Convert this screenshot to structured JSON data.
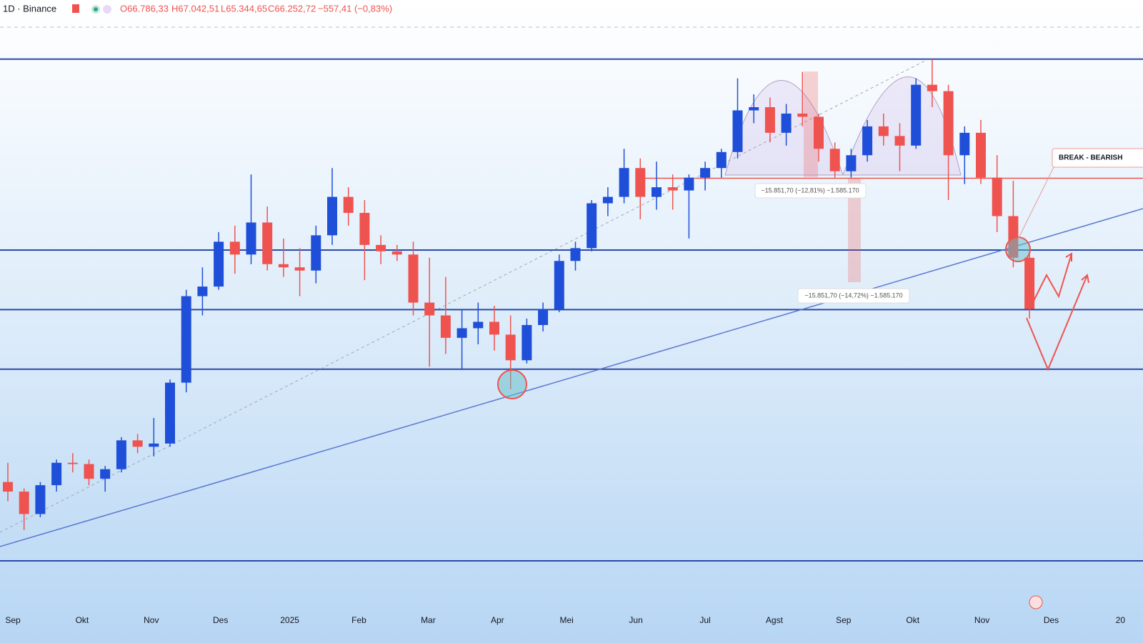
{
  "header": {
    "symbol": "1D · Binance",
    "open": "O66.786,33",
    "high": "H67.042,51",
    "low": "L65.344,65",
    "close": "C66.252,72",
    "change": "−557,41 (−0,83%)"
  },
  "annotations": {
    "break": "BREAK - BEARISH",
    "measure_1": "−15.851,70 (−12,81%) −1.585.170",
    "measure_2": "−15.851,70 (−14,72%) −1.585.170"
  },
  "chart_data": {
    "type": "candlestick",
    "ylim": [
      40000,
      134000
    ],
    "x_labels": [
      "Sep",
      "Okt",
      "Nov",
      "Des",
      "2025",
      "Feb",
      "Mar",
      "Apr",
      "Mei",
      "Jun",
      "Jul",
      "Agst",
      "Sep",
      "Okt",
      "Nov",
      "Des",
      "20"
    ],
    "up_color": "#1f4fd8",
    "down_color": "#ef5350",
    "levels": [
      126000,
      96200,
      86900,
      77600,
      47700
    ],
    "level_color": "#2a4aa8",
    "neckline": 107400,
    "neckline_color": "#ef5350",
    "candles": [
      {
        "o": 60000,
        "h": 63000,
        "l": 57000,
        "c": 58500
      },
      {
        "o": 58500,
        "h": 59000,
        "l": 52500,
        "c": 55000
      },
      {
        "o": 55000,
        "h": 60000,
        "l": 54500,
        "c": 59500
      },
      {
        "o": 59500,
        "h": 63500,
        "l": 58500,
        "c": 63000
      },
      {
        "o": 63000,
        "h": 64500,
        "l": 61500,
        "c": 62800
      },
      {
        "o": 62800,
        "h": 63500,
        "l": 59500,
        "c": 60500
      },
      {
        "o": 60500,
        "h": 62500,
        "l": 58500,
        "c": 62000
      },
      {
        "o": 62000,
        "h": 67000,
        "l": 61500,
        "c": 66500
      },
      {
        "o": 66500,
        "h": 67500,
        "l": 64500,
        "c": 65500
      },
      {
        "o": 65500,
        "h": 70000,
        "l": 64000,
        "c": 66000
      },
      {
        "o": 66000,
        "h": 76000,
        "l": 65500,
        "c": 75500
      },
      {
        "o": 75500,
        "h": 90000,
        "l": 74000,
        "c": 89000
      },
      {
        "o": 89000,
        "h": 93500,
        "l": 86000,
        "c": 90500
      },
      {
        "o": 90500,
        "h": 99000,
        "l": 90000,
        "c": 97500
      },
      {
        "o": 97500,
        "h": 100000,
        "l": 92500,
        "c": 95500
      },
      {
        "o": 95500,
        "h": 108000,
        "l": 94000,
        "c": 100500
      },
      {
        "o": 100500,
        "h": 103000,
        "l": 93000,
        "c": 94000
      },
      {
        "o": 94000,
        "h": 98000,
        "l": 92000,
        "c": 93500
      },
      {
        "o": 93500,
        "h": 96500,
        "l": 89000,
        "c": 93000
      },
      {
        "o": 93000,
        "h": 100000,
        "l": 91000,
        "c": 98500
      },
      {
        "o": 98500,
        "h": 109000,
        "l": 97000,
        "c": 104500
      },
      {
        "o": 104500,
        "h": 106000,
        "l": 100000,
        "c": 102000
      },
      {
        "o": 102000,
        "h": 104000,
        "l": 91500,
        "c": 97000
      },
      {
        "o": 97000,
        "h": 98500,
        "l": 94000,
        "c": 96000
      },
      {
        "o": 96000,
        "h": 97000,
        "l": 94500,
        "c": 95500
      },
      {
        "o": 95500,
        "h": 97500,
        "l": 86000,
        "c": 88000
      },
      {
        "o": 88000,
        "h": 95000,
        "l": 78000,
        "c": 86000
      },
      {
        "o": 86000,
        "h": 92000,
        "l": 80000,
        "c": 82500
      },
      {
        "o": 82500,
        "h": 87000,
        "l": 77500,
        "c": 84000
      },
      {
        "o": 84000,
        "h": 88000,
        "l": 81500,
        "c": 85000
      },
      {
        "o": 85000,
        "h": 87500,
        "l": 80500,
        "c": 83000
      },
      {
        "o": 83000,
        "h": 86000,
        "l": 74500,
        "c": 79000
      },
      {
        "o": 79000,
        "h": 85500,
        "l": 78500,
        "c": 84500
      },
      {
        "o": 84500,
        "h": 88000,
        "l": 83500,
        "c": 87000
      },
      {
        "o": 87000,
        "h": 95500,
        "l": 86500,
        "c": 94500
      },
      {
        "o": 94500,
        "h": 97500,
        "l": 93000,
        "c": 96500
      },
      {
        "o": 96500,
        "h": 104000,
        "l": 96000,
        "c": 103500
      },
      {
        "o": 103500,
        "h": 106000,
        "l": 101500,
        "c": 104500
      },
      {
        "o": 104500,
        "h": 112000,
        "l": 103500,
        "c": 109000
      },
      {
        "o": 109000,
        "h": 110500,
        "l": 101000,
        "c": 104500
      },
      {
        "o": 104500,
        "h": 110000,
        "l": 102500,
        "c": 106000
      },
      {
        "o": 106000,
        "h": 108000,
        "l": 102500,
        "c": 105500
      },
      {
        "o": 105500,
        "h": 108000,
        "l": 98000,
        "c": 107500
      },
      {
        "o": 107500,
        "h": 110000,
        "l": 105500,
        "c": 109000
      },
      {
        "o": 109000,
        "h": 112000,
        "l": 107500,
        "c": 111500
      },
      {
        "o": 111500,
        "h": 123000,
        "l": 110500,
        "c": 118000
      },
      {
        "o": 118000,
        "h": 120500,
        "l": 116000,
        "c": 118500
      },
      {
        "o": 118500,
        "h": 120000,
        "l": 113000,
        "c": 114500
      },
      {
        "o": 114500,
        "h": 119000,
        "l": 112500,
        "c": 117500
      },
      {
        "o": 117500,
        "h": 124000,
        "l": 115500,
        "c": 117000
      },
      {
        "o": 117000,
        "h": 117500,
        "l": 110000,
        "c": 112000
      },
      {
        "o": 112000,
        "h": 113000,
        "l": 107500,
        "c": 108500
      },
      {
        "o": 108500,
        "h": 112000,
        "l": 107500,
        "c": 111000
      },
      {
        "o": 111000,
        "h": 116500,
        "l": 110000,
        "c": 115500
      },
      {
        "o": 115500,
        "h": 117500,
        "l": 112500,
        "c": 114000
      },
      {
        "o": 114000,
        "h": 116000,
        "l": 108500,
        "c": 112500
      },
      {
        "o": 112500,
        "h": 123000,
        "l": 112000,
        "c": 122000
      },
      {
        "o": 122000,
        "h": 126000,
        "l": 118500,
        "c": 121000
      },
      {
        "o": 121000,
        "h": 122000,
        "l": 104000,
        "c": 111000
      },
      {
        "o": 111000,
        "h": 115500,
        "l": 106500,
        "c": 114500
      },
      {
        "o": 114500,
        "h": 116500,
        "l": 106500,
        "c": 107500
      },
      {
        "o": 107500,
        "h": 111000,
        "l": 99000,
        "c": 101500
      },
      {
        "o": 101500,
        "h": 107000,
        "l": 93500,
        "c": 95000
      },
      {
        "o": 95000,
        "h": 96000,
        "l": 85500,
        "c": 87000
      }
    ]
  }
}
